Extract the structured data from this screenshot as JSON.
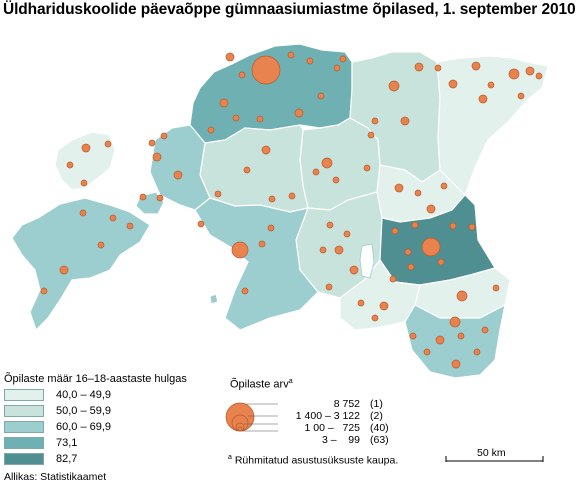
{
  "title": "Üldhariduskoolide päevaõppe gümnaasiumiastme õpilased, 1. september 2010",
  "legend": {
    "title": "Õpilaste määr 16–18-aastaste hulgas",
    "classes": [
      {
        "label": "40,0 – 49,9",
        "color": "#e3f1ec"
      },
      {
        "label": "50,0 – 59,9",
        "color": "#c7e3dc"
      },
      {
        "label": "60,0 – 69,9",
        "color": "#9ccdcf"
      },
      {
        "label": "73,1",
        "color": "#6fb1b3"
      },
      {
        "label": "82,7",
        "color": "#4f8f91"
      }
    ]
  },
  "bubble_legend": {
    "title": "Õpilaste arv",
    "footnote_mark": "a",
    "rows": [
      {
        "range": "8 752",
        "count": "(1)"
      },
      {
        "range": "1 400 – 3 122",
        "count": "(2)"
      },
      {
        "range": "1 00 –   725",
        "count": "(40)"
      },
      {
        "range": "3 –    99",
        "count": "(63)"
      }
    ]
  },
  "footnote": {
    "mark": "a",
    "text": "Rühmitatud asustusüksuste kaupa."
  },
  "source": "Allikas: Statistikaamet",
  "scale_bar": {
    "label": "50 km"
  },
  "colors": {
    "bubble_fill": "#e8834f",
    "bubble_stroke": "#b85a2a",
    "border": "#ffffff"
  }
}
